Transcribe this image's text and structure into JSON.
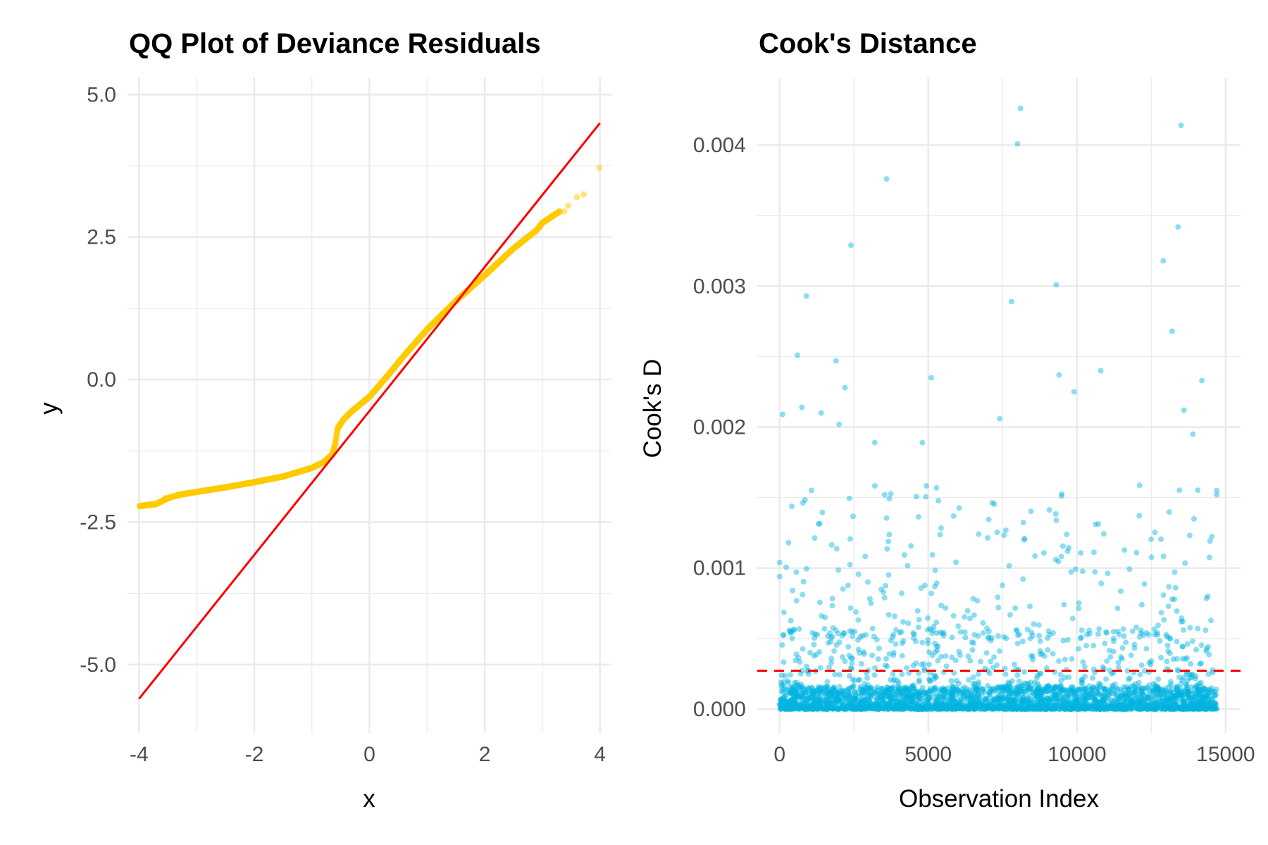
{
  "chart_data": [
    {
      "type": "scatter",
      "title": "QQ Plot of Deviance Residuals",
      "xlabel": "x",
      "ylabel": "y",
      "xlim": [
        -4.2,
        4.2
      ],
      "ylim": [
        -6.2,
        5.3
      ],
      "x_ticks": [
        -4,
        -2,
        0,
        2,
        4
      ],
      "x_tick_labels": [
        "-4",
        "-2",
        "0",
        "2",
        "4"
      ],
      "y_ticks": [
        -5.0,
        -2.5,
        0.0,
        2.5,
        5.0
      ],
      "y_tick_labels": [
        "-5.0",
        "-2.5",
        "0.0",
        "2.5",
        "5.0"
      ],
      "grid": true,
      "point_color": "#FFCC00",
      "line_color": "#FF0000",
      "sample_quantiles_curve": {
        "x": [
          -3.99,
          -3.7,
          -3.5,
          -3.3,
          -3.0,
          -2.5,
          -2.0,
          -1.5,
          -1.0,
          -0.8,
          -0.65,
          -0.6,
          -0.55,
          -0.45,
          -0.3,
          0.0,
          0.3,
          0.6,
          1.0,
          1.5,
          2.0,
          2.5,
          2.9,
          3.0,
          3.3
        ],
        "y": [
          -2.22,
          -2.18,
          -2.08,
          -2.02,
          -1.97,
          -1.89,
          -1.8,
          -1.7,
          -1.55,
          -1.45,
          -1.32,
          -1.15,
          -0.85,
          -0.7,
          -0.55,
          -0.3,
          0.05,
          0.42,
          0.88,
          1.38,
          1.83,
          2.3,
          2.62,
          2.75,
          2.95
        ]
      },
      "sample_quantiles_tail": {
        "x": [
          -3.85,
          -3.72,
          -3.55,
          3.38,
          3.45,
          3.6,
          3.72,
          3.99
        ],
        "y": [
          -2.2,
          -2.2,
          -2.08,
          2.95,
          3.05,
          3.2,
          3.25,
          3.72
        ]
      },
      "reference_line": {
        "x": [
          -4.0,
          4.0
        ],
        "y": [
          -5.6,
          4.5
        ]
      }
    },
    {
      "type": "scatter",
      "title": "Cook's Distance",
      "xlabel": "Observation Index",
      "ylabel": "Cook's D",
      "xlim": [
        -750,
        15500
      ],
      "ylim": [
        -0.00017,
        0.00448
      ],
      "x_ticks": [
        0,
        5000,
        10000,
        15000
      ],
      "x_tick_labels": [
        "0",
        "5000",
        "10000",
        "15000"
      ],
      "y_ticks": [
        0.0,
        0.001,
        0.002,
        0.003,
        0.004
      ],
      "y_tick_labels": [
        "0.000",
        "0.001",
        "0.002",
        "0.003",
        "0.004"
      ],
      "grid": true,
      "point_color": "#00B4E0",
      "n_observations": 14700,
      "threshold": 0.000272,
      "threshold_color": "#FF0000",
      "highlighted_points": {
        "index": [
          0,
          100,
          300,
          600,
          750,
          900,
          1400,
          1900,
          2000,
          2200,
          2400,
          3200,
          3600,
          4800,
          5100,
          7400,
          7800,
          8000,
          8100,
          9300,
          9400,
          9900,
          10800,
          12900,
          13200,
          13400,
          13500,
          13600,
          13900,
          14200,
          14700,
          14700
        ],
        "cooks_d": [
          0.00094,
          0.00209,
          0.00118,
          0.00251,
          0.00214,
          0.00293,
          0.0021,
          0.00247,
          0.00202,
          0.00228,
          0.00329,
          0.00189,
          0.00376,
          0.00189,
          0.00235,
          0.00206,
          0.00289,
          0.00401,
          0.00426,
          0.00301,
          0.00237,
          0.00225,
          0.0024,
          0.00318,
          0.00268,
          0.00342,
          0.00414,
          0.00212,
          0.00195,
          0.00233,
          0.00155,
          0.00152
        ]
      }
    }
  ]
}
